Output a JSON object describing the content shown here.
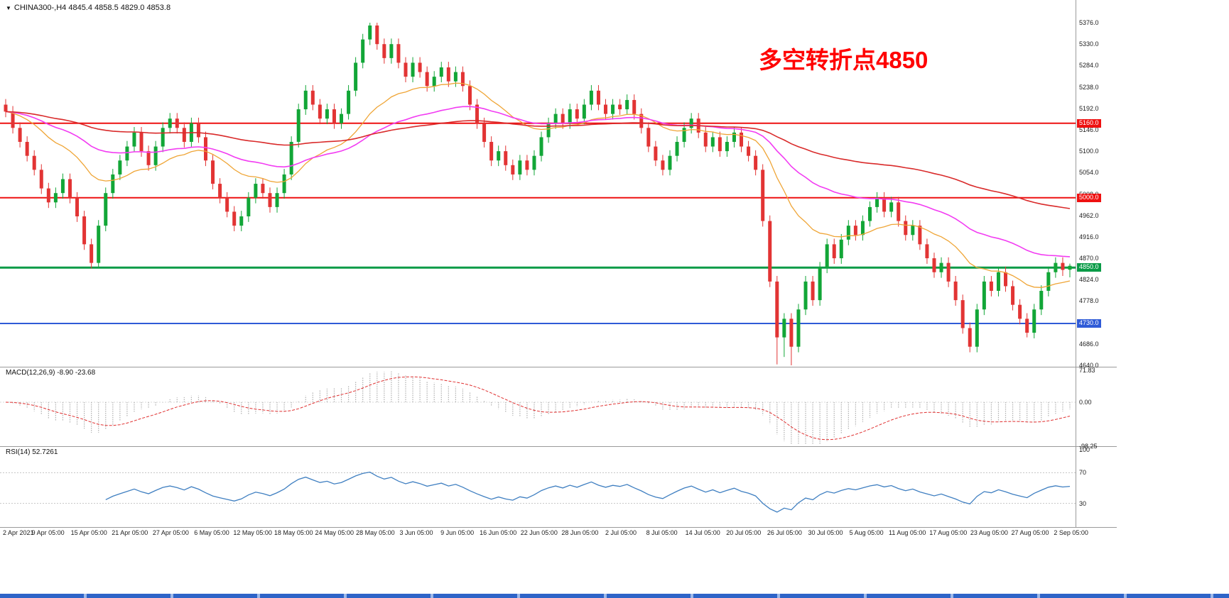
{
  "header": {
    "collapse_glyph": "▼",
    "symbol_info": "CHINA300-,H4 4845.4 4858.5 4829.0 4853.8"
  },
  "annotation": {
    "text": "多空转折点4850",
    "color": "#ff0000"
  },
  "colors": {
    "candle_up": "#12a637",
    "candle_down": "#e23434",
    "macd_histogram": "#b0b0b0",
    "macd_signal": "#e03030",
    "rsi_line": "#3f7fc1",
    "axis_text": "#1c1c1c",
    "bottom_strip": "#2e64c8"
  },
  "chart_data": [
    {
      "type": "candlestick",
      "title": "CHINA300-,H4",
      "timeframe": "H4",
      "ohlc_current": {
        "open": 4845.4,
        "high": 4858.5,
        "low": 4829.0,
        "close": 4853.8
      },
      "y_ticks": [
        "5376.0",
        "5330.0",
        "5284.0",
        "5238.0",
        "5192.0",
        "5146.0",
        "5100.0",
        "5054.0",
        "5008.0",
        "4962.0",
        "4916.0",
        "4870.0",
        "4824.0",
        "4778.0",
        "4732.0",
        "4686.0",
        "4640.0"
      ],
      "x_labels": [
        "2 Apr 2021",
        "9 Apr 05:00",
        "15 Apr 05:00",
        "21 Apr 05:00",
        "27 Apr 05:00",
        "6 May 05:00",
        "12 May 05:00",
        "18 May 05:00",
        "24 May 05:00",
        "28 May 05:00",
        "3 Jun 05:00",
        "9 Jun 05:00",
        "16 Jun 05:00",
        "22 Jun 05:00",
        "28 Jun 05:00",
        "2 Jul 05:00",
        "8 Jul 05:00",
        "14 Jul 05:00",
        "20 Jul 05:00",
        "26 Jul 05:00",
        "30 Jul 05:00",
        "5 Aug 05:00",
        "11 Aug 05:00",
        "17 Aug 05:00",
        "23 Aug 05:00",
        "27 Aug 05:00",
        "2 Sep 05:00"
      ],
      "hlines": [
        {
          "price": 5160.0,
          "label": "5160.0",
          "color": "#ee1111",
          "thickness": 2
        },
        {
          "price": 5000.0,
          "label": "5000.0",
          "color": "#ee1111",
          "thickness": 2
        },
        {
          "price": 4850.0,
          "label": "4850.0",
          "color": "#0a9b47",
          "thickness": 3
        },
        {
          "price": 4730.0,
          "label": "4730.0",
          "color": "#2f5bd7",
          "thickness": 2
        }
      ],
      "moving_averages": [
        {
          "period": 20,
          "color": "#efa536",
          "width": 1.3
        },
        {
          "period": 45,
          "color": "#f23cf2",
          "width": 1.6
        },
        {
          "period": 110,
          "color": "#d92a2a",
          "width": 1.6
        }
      ],
      "candles": [
        [
          5200,
          5212,
          5173,
          5185
        ],
        [
          5185,
          5197,
          5138,
          5150
        ],
        [
          5150,
          5162,
          5108,
          5120
        ],
        [
          5120,
          5132,
          5078,
          5090
        ],
        [
          5090,
          5102,
          5048,
          5060
        ],
        [
          5060,
          5072,
          5008,
          5020
        ],
        [
          5020,
          5032,
          4978,
          4990
        ],
        [
          4990,
          5022,
          4978,
          5010
        ],
        [
          5010,
          5052,
          4998,
          5040
        ],
        [
          5040,
          5052,
          4988,
          5000
        ],
        [
          5000,
          5012,
          4948,
          4960
        ],
        [
          4960,
          4972,
          4888,
          4900
        ],
        [
          4900,
          4912,
          4848,
          4860
        ],
        [
          4860,
          4952,
          4848,
          4940
        ],
        [
          4940,
          5022,
          4928,
          5010
        ],
        [
          5010,
          5062,
          4998,
          5050
        ],
        [
          5050,
          5092,
          5038,
          5080
        ],
        [
          5080,
          5122,
          5068,
          5110
        ],
        [
          5110,
          5152,
          5098,
          5140
        ],
        [
          5140,
          5152,
          5088,
          5100
        ],
        [
          5100,
          5112,
          5058,
          5070
        ],
        [
          5070,
          5122,
          5058,
          5110
        ],
        [
          5110,
          5162,
          5098,
          5150
        ],
        [
          5150,
          5182,
          5138,
          5170
        ],
        [
          5170,
          5182,
          5138,
          5150
        ],
        [
          5150,
          5162,
          5108,
          5120
        ],
        [
          5120,
          5172,
          5108,
          5160
        ],
        [
          5160,
          5172,
          5118,
          5130
        ],
        [
          5130,
          5142,
          5068,
          5080
        ],
        [
          5080,
          5092,
          5018,
          5030
        ],
        [
          5030,
          5042,
          4988,
          5000
        ],
        [
          5000,
          5012,
          4958,
          4970
        ],
        [
          4970,
          4982,
          4928,
          4940
        ],
        [
          4940,
          4972,
          4928,
          4960
        ],
        [
          4960,
          5012,
          4948,
          5000
        ],
        [
          5000,
          5042,
          4988,
          5030
        ],
        [
          5030,
          5042,
          4998,
          5010
        ],
        [
          5010,
          5022,
          4968,
          4980
        ],
        [
          4980,
          5022,
          4968,
          5010
        ],
        [
          5010,
          5062,
          4998,
          5050
        ],
        [
          5050,
          5132,
          5038,
          5120
        ],
        [
          5120,
          5202,
          5108,
          5190
        ],
        [
          5190,
          5242,
          5178,
          5230
        ],
        [
          5230,
          5242,
          5188,
          5200
        ],
        [
          5200,
          5212,
          5158,
          5170
        ],
        [
          5170,
          5202,
          5158,
          5190
        ],
        [
          5190,
          5202,
          5148,
          5160
        ],
        [
          5160,
          5192,
          5148,
          5180
        ],
        [
          5180,
          5242,
          5168,
          5230
        ],
        [
          5230,
          5302,
          5218,
          5290
        ],
        [
          5290,
          5352,
          5278,
          5340
        ],
        [
          5340,
          5376,
          5328,
          5370
        ],
        [
          5370,
          5376,
          5318,
          5330
        ],
        [
          5330,
          5342,
          5288,
          5300
        ],
        [
          5300,
          5342,
          5288,
          5330
        ],
        [
          5330,
          5342,
          5278,
          5290
        ],
        [
          5290,
          5302,
          5248,
          5260
        ],
        [
          5260,
          5302,
          5248,
          5290
        ],
        [
          5290,
          5302,
          5258,
          5270
        ],
        [
          5270,
          5282,
          5228,
          5240
        ],
        [
          5240,
          5272,
          5228,
          5260
        ],
        [
          5260,
          5292,
          5248,
          5280
        ],
        [
          5280,
          5292,
          5238,
          5250
        ],
        [
          5250,
          5282,
          5238,
          5270
        ],
        [
          5270,
          5282,
          5228,
          5240
        ],
        [
          5240,
          5252,
          5188,
          5200
        ],
        [
          5200,
          5212,
          5148,
          5160
        ],
        [
          5160,
          5172,
          5108,
          5120
        ],
        [
          5120,
          5132,
          5068,
          5080
        ],
        [
          5080,
          5112,
          5068,
          5100
        ],
        [
          5100,
          5112,
          5058,
          5070
        ],
        [
          5070,
          5082,
          5038,
          5050
        ],
        [
          5050,
          5092,
          5038,
          5080
        ],
        [
          5080,
          5092,
          5048,
          5060
        ],
        [
          5060,
          5102,
          5048,
          5090
        ],
        [
          5090,
          5142,
          5078,
          5130
        ],
        [
          5130,
          5172,
          5118,
          5160
        ],
        [
          5160,
          5192,
          5148,
          5180
        ],
        [
          5180,
          5192,
          5148,
          5160
        ],
        [
          5160,
          5202,
          5148,
          5190
        ],
        [
          5190,
          5202,
          5158,
          5170
        ],
        [
          5170,
          5212,
          5158,
          5200
        ],
        [
          5200,
          5242,
          5188,
          5230
        ],
        [
          5230,
          5242,
          5188,
          5200
        ],
        [
          5200,
          5212,
          5168,
          5180
        ],
        [
          5180,
          5212,
          5168,
          5200
        ],
        [
          5200,
          5212,
          5178,
          5190
        ],
        [
          5190,
          5222,
          5178,
          5210
        ],
        [
          5210,
          5222,
          5168,
          5180
        ],
        [
          5180,
          5192,
          5138,
          5150
        ],
        [
          5150,
          5162,
          5098,
          5110
        ],
        [
          5110,
          5122,
          5068,
          5080
        ],
        [
          5080,
          5092,
          5048,
          5060
        ],
        [
          5060,
          5102,
          5048,
          5090
        ],
        [
          5090,
          5132,
          5078,
          5120
        ],
        [
          5120,
          5162,
          5108,
          5150
        ],
        [
          5150,
          5182,
          5138,
          5170
        ],
        [
          5170,
          5182,
          5128,
          5140
        ],
        [
          5140,
          5152,
          5098,
          5110
        ],
        [
          5110,
          5142,
          5098,
          5130
        ],
        [
          5130,
          5142,
          5088,
          5100
        ],
        [
          5100,
          5132,
          5088,
          5120
        ],
        [
          5120,
          5152,
          5108,
          5140
        ],
        [
          5140,
          5152,
          5098,
          5110
        ],
        [
          5110,
          5122,
          5078,
          5090
        ],
        [
          5090,
          5102,
          5048,
          5060
        ],
        [
          5060,
          5072,
          4938,
          4950
        ],
        [
          4950,
          4962,
          4808,
          4820
        ],
        [
          4820,
          4832,
          4642,
          4700
        ],
        [
          4700,
          4752,
          4658,
          4740
        ],
        [
          4740,
          4752,
          4640,
          4680
        ],
        [
          4680,
          4772,
          4668,
          4760
        ],
        [
          4760,
          4832,
          4748,
          4820
        ],
        [
          4820,
          4832,
          4768,
          4780
        ],
        [
          4780,
          4862,
          4768,
          4850
        ],
        [
          4850,
          4912,
          4838,
          4900
        ],
        [
          4900,
          4912,
          4858,
          4870
        ],
        [
          4870,
          4922,
          4858,
          4910
        ],
        [
          4910,
          4952,
          4898,
          4940
        ],
        [
          4940,
          4952,
          4908,
          4920
        ],
        [
          4920,
          4962,
          4908,
          4950
        ],
        [
          4950,
          4992,
          4938,
          4980
        ],
        [
          4980,
          5012,
          4968,
          5000
        ],
        [
          5000,
          5012,
          4958,
          4970
        ],
        [
          4970,
          5002,
          4958,
          4990
        ],
        [
          4990,
          5002,
          4938,
          4950
        ],
        [
          4950,
          4962,
          4908,
          4920
        ],
        [
          4920,
          4952,
          4908,
          4940
        ],
        [
          4940,
          4952,
          4888,
          4900
        ],
        [
          4900,
          4912,
          4858,
          4870
        ],
        [
          4870,
          4882,
          4828,
          4840
        ],
        [
          4840,
          4872,
          4828,
          4860
        ],
        [
          4860,
          4872,
          4808,
          4820
        ],
        [
          4820,
          4832,
          4768,
          4780
        ],
        [
          4780,
          4792,
          4708,
          4720
        ],
        [
          4720,
          4732,
          4668,
          4680
        ],
        [
          4680,
          4772,
          4668,
          4760
        ],
        [
          4760,
          4832,
          4748,
          4820
        ],
        [
          4820,
          4832,
          4788,
          4800
        ],
        [
          4800,
          4852,
          4788,
          4840
        ],
        [
          4840,
          4852,
          4798,
          4810
        ],
        [
          4810,
          4822,
          4758,
          4770
        ],
        [
          4770,
          4782,
          4728,
          4740
        ],
        [
          4740,
          4752,
          4700,
          4710
        ],
        [
          4710,
          4772,
          4698,
          4760
        ],
        [
          4760,
          4812,
          4748,
          4800
        ],
        [
          4800,
          4852,
          4788,
          4840
        ],
        [
          4840,
          4872,
          4828,
          4860
        ],
        [
          4860,
          4872,
          4832,
          4845
        ],
        [
          4845.4,
          4858.5,
          4829.0,
          4853.8
        ]
      ]
    },
    {
      "type": "line",
      "name": "MACD",
      "header": "MACD(12,26,9) -8.90 -23.68",
      "params": {
        "fast": 12,
        "slow": 26,
        "signal": 9
      },
      "current_values": [
        -8.9,
        -23.68
      ],
      "y_ticks": [
        "71.83",
        "0.00",
        "-98.25"
      ]
    },
    {
      "type": "line",
      "name": "RSI",
      "header": "RSI(14) 52.7261",
      "period": 14,
      "current_value": 52.7261,
      "levels": [
        70,
        30
      ],
      "y_ticks": [
        "100",
        "70",
        "30"
      ]
    }
  ]
}
